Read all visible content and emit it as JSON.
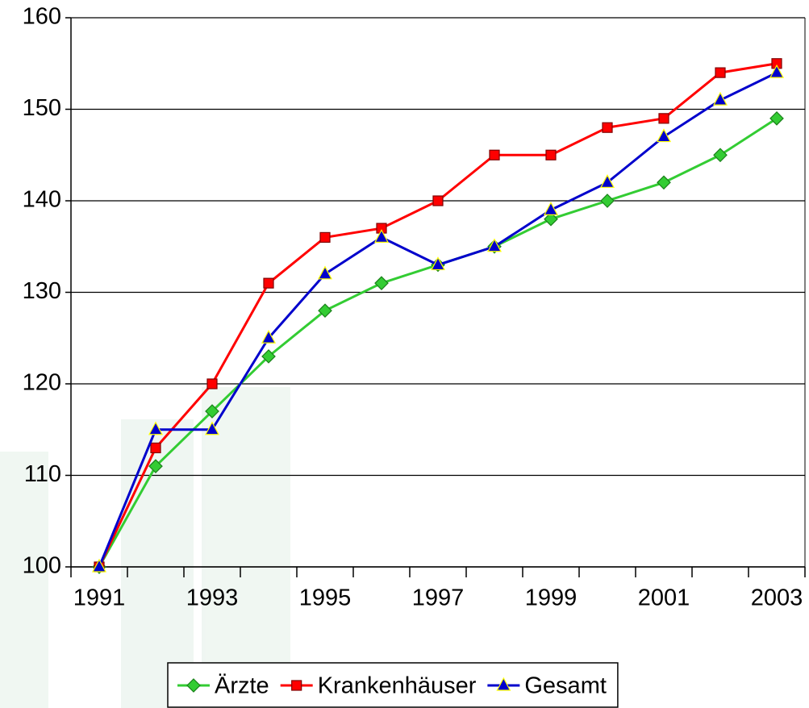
{
  "chart_data": {
    "type": "line",
    "categories": [
      "1991",
      null,
      "1993",
      null,
      "1995",
      null,
      "1997",
      null,
      "1999",
      null,
      "2001",
      null,
      "2003"
    ],
    "series": [
      {
        "name": "Ärzte",
        "color": "#33cc33",
        "marker": "diamond",
        "marker_edge": "#1a801a",
        "values": [
          100,
          111,
          117,
          123,
          128,
          131,
          133,
          135,
          138,
          140,
          142,
          145,
          149
        ]
      },
      {
        "name": "Krankenhäuser",
        "color": "#ff0000",
        "marker": "square",
        "marker_edge": "#800000",
        "values": [
          100,
          113,
          120,
          131,
          136,
          137,
          140,
          145,
          145,
          148,
          149,
          154,
          155
        ]
      },
      {
        "name": "Gesamt",
        "color": "#0000cc",
        "marker": "triangle",
        "marker_edge": "#ffff00",
        "values": [
          100,
          115,
          115,
          125,
          132,
          136,
          133,
          135,
          139,
          142,
          147,
          151,
          154
        ]
      }
    ],
    "ylim": [
      100,
      160
    ],
    "yticks": [
      100,
      110,
      120,
      130,
      140,
      150,
      160
    ],
    "grid": true,
    "legend": "bottom"
  }
}
